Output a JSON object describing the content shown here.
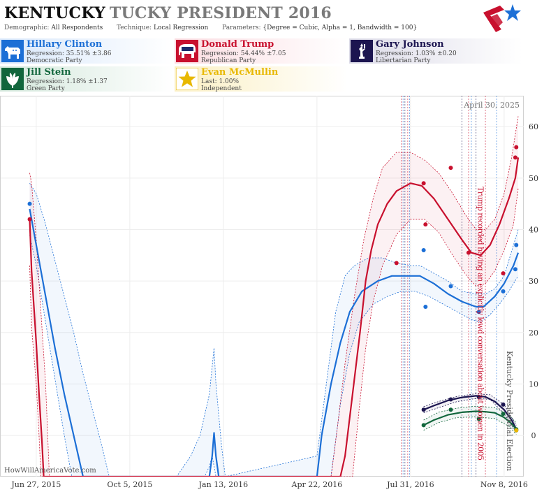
{
  "header": {
    "title_state": "KENTUCKY",
    "title_rest": "TUCKY PRESIDENT 2016",
    "demographic_label": "Demographic:",
    "demographic_value": "All Respondents",
    "technique_label": "Technique:",
    "technique_value": "Local Regression",
    "parameters_label": "Parameters:",
    "parameters_value": "{Degree = Cubic, Alpha = 1, Bandwidth = 100}"
  },
  "candidates": [
    {
      "name": "Hillary Clinton",
      "regression": "Regression: 35.51% ±3.86",
      "party": "Democratic Party",
      "color": "#1c6fd6",
      "icon": "donkey-icon"
    },
    {
      "name": "Donald Trump",
      "regression": "Regression: 54.44% ±7.05",
      "party": "Republican Party",
      "color": "#c8102e",
      "icon": "elephant-icon"
    },
    {
      "name": "Gary Johnson",
      "regression": "Regression: 1.03% ±0.20",
      "party": "Libertarian Party",
      "color": "#1c1550",
      "icon": "liberty-icon"
    },
    {
      "name": "Jill Stein",
      "regression": "Regression: 1.18% ±1.37",
      "party": "Green Party",
      "color": "#11663c",
      "icon": "leaf-icon"
    },
    {
      "name": "Evan McMullin",
      "regression": "Last: 1.00%",
      "party": "Independent",
      "color": "#e8b800",
      "icon": "star-icon"
    }
  ],
  "credit": "HowWillAmericaVote.com",
  "chart_data": {
    "type": "line",
    "x_ticks": [
      "Jun 27, 2015",
      "Oct 5, 2015",
      "Jan 13, 2016",
      "Apr 22, 2016",
      "Jul 31, 2016",
      "Nov 8, 2016"
    ],
    "y_ticks": [
      0,
      10,
      20,
      30,
      40,
      50,
      60
    ],
    "ylim": [
      -8,
      66
    ],
    "xlim_days": [
      -38,
      521
    ],
    "grid": true,
    "annotations": [
      {
        "text": "April 30, 2025",
        "position": "top-right"
      },
      {
        "text": "Trump recorded having an explicitly lewd conversation about women in 2005",
        "x_day": 469,
        "color": "#c8102e"
      },
      {
        "text": "Kentucky Presidential Election",
        "x_day": 500,
        "color": "#555555"
      }
    ],
    "event_lines_days": [
      390,
      392,
      394,
      397,
      399,
      455,
      462,
      465,
      470,
      480,
      492
    ],
    "series": [
      {
        "name": "Hillary Clinton",
        "color": "#1c6fd6",
        "points": [
          [
            -7,
            45
          ],
          [
            414,
            36
          ],
          [
            416,
            25
          ],
          [
            443,
            29
          ],
          [
            473,
            24
          ],
          [
            499,
            28
          ],
          [
            513,
            37
          ],
          [
            512,
            32.3
          ]
        ],
        "line": [
          [
            -7,
            44
          ],
          [
            0,
            37
          ],
          [
            10,
            27
          ],
          [
            20,
            17
          ],
          [
            30,
            8
          ],
          [
            40,
            0
          ],
          [
            50,
            -8
          ],
          [
            185,
            -8
          ],
          [
            188,
            -4
          ],
          [
            190,
            0.5
          ],
          [
            192,
            -4
          ],
          [
            195,
            -8
          ],
          [
            300,
            -8
          ],
          [
            305,
            0
          ],
          [
            315,
            10
          ],
          [
            325,
            18
          ],
          [
            335,
            24
          ],
          [
            348,
            28
          ],
          [
            365,
            30
          ],
          [
            380,
            31
          ],
          [
            395,
            31
          ],
          [
            410,
            31
          ],
          [
            425,
            29.5
          ],
          [
            440,
            27.5
          ],
          [
            455,
            26
          ],
          [
            470,
            25
          ],
          [
            478,
            25
          ],
          [
            490,
            27
          ],
          [
            500,
            29.5
          ],
          [
            510,
            33
          ],
          [
            515,
            35.5
          ]
        ],
        "band_upper": [
          [
            -7,
            49
          ],
          [
            0,
            47
          ],
          [
            10,
            41
          ],
          [
            20,
            34
          ],
          [
            30,
            27
          ],
          [
            40,
            20
          ],
          [
            50,
            12
          ],
          [
            60,
            5
          ],
          [
            70,
            -2
          ],
          [
            78,
            -8
          ],
          [
            150,
            -8
          ],
          [
            165,
            -4
          ],
          [
            175,
            0
          ],
          [
            185,
            8
          ],
          [
            190,
            17
          ],
          [
            192,
            10
          ],
          [
            198,
            -2
          ],
          [
            202,
            -8
          ],
          [
            300,
            -4
          ],
          [
            310,
            10
          ],
          [
            320,
            24
          ],
          [
            330,
            31
          ],
          [
            340,
            33
          ],
          [
            355,
            34.5
          ],
          [
            370,
            34.5
          ],
          [
            385,
            33.5
          ],
          [
            400,
            33
          ],
          [
            410,
            33
          ],
          [
            425,
            31.5
          ],
          [
            440,
            30
          ],
          [
            455,
            28
          ],
          [
            470,
            27.5
          ],
          [
            480,
            27.5
          ],
          [
            490,
            28.5
          ],
          [
            500,
            31
          ],
          [
            510,
            37
          ],
          [
            515,
            40
          ]
        ],
        "band_lower": [
          [
            -7,
            39
          ],
          [
            0,
            33
          ],
          [
            10,
            22
          ],
          [
            20,
            11
          ],
          [
            30,
            0
          ],
          [
            38,
            -8
          ],
          [
            180,
            -8
          ],
          [
            185,
            -6
          ],
          [
            188,
            -4
          ],
          [
            192,
            -8
          ],
          [
            315,
            -8
          ],
          [
            325,
            6
          ],
          [
            335,
            16
          ],
          [
            345,
            22
          ],
          [
            360,
            25.5
          ],
          [
            375,
            27
          ],
          [
            390,
            28
          ],
          [
            405,
            28
          ],
          [
            420,
            27
          ],
          [
            435,
            25.5
          ],
          [
            450,
            24
          ],
          [
            465,
            22.5
          ],
          [
            475,
            22
          ],
          [
            485,
            23.5
          ],
          [
            495,
            25.5
          ],
          [
            505,
            28
          ],
          [
            515,
            31
          ]
        ]
      },
      {
        "name": "Donald Trump",
        "color": "#c8102e",
        "points": [
          [
            -7,
            42
          ],
          [
            385,
            33.5
          ],
          [
            414,
            49
          ],
          [
            416,
            41
          ],
          [
            443,
            52
          ],
          [
            462,
            35.5
          ],
          [
            499,
            31.5
          ],
          [
            513,
            56
          ],
          [
            512,
            54
          ]
        ],
        "line": [
          [
            -7,
            42
          ],
          [
            -5,
            32
          ],
          [
            0,
            18
          ],
          [
            3,
            8
          ],
          [
            6,
            -1
          ],
          [
            8,
            -8
          ],
          [
            325,
            -8
          ],
          [
            330,
            -4
          ],
          [
            338,
            8
          ],
          [
            346,
            20
          ],
          [
            352,
            30
          ],
          [
            358,
            36
          ],
          [
            365,
            41
          ],
          [
            375,
            45
          ],
          [
            385,
            47.5
          ],
          [
            400,
            49
          ],
          [
            412,
            48.5
          ],
          [
            425,
            46
          ],
          [
            440,
            42
          ],
          [
            455,
            38
          ],
          [
            465,
            35.5
          ],
          [
            475,
            35
          ],
          [
            485,
            37
          ],
          [
            495,
            41
          ],
          [
            505,
            46
          ],
          [
            512,
            50
          ],
          [
            515,
            54
          ]
        ],
        "band_upper": [
          [
            -7,
            51
          ],
          [
            -5,
            49
          ],
          [
            0,
            38
          ],
          [
            5,
            24
          ],
          [
            10,
            10
          ],
          [
            14,
            -8
          ],
          [
            315,
            -8
          ],
          [
            322,
            2
          ],
          [
            330,
            14
          ],
          [
            340,
            27
          ],
          [
            350,
            38
          ],
          [
            360,
            46
          ],
          [
            370,
            52
          ],
          [
            385,
            55
          ],
          [
            400,
            55
          ],
          [
            415,
            53.5
          ],
          [
            430,
            51
          ],
          [
            445,
            47
          ],
          [
            460,
            42.5
          ],
          [
            470,
            40
          ],
          [
            480,
            40
          ],
          [
            490,
            42
          ],
          [
            500,
            47
          ],
          [
            508,
            54
          ],
          [
            515,
            62
          ]
        ],
        "band_lower": [
          [
            -7,
            33
          ],
          [
            -5,
            21
          ],
          [
            0,
            10
          ],
          [
            3,
            0
          ],
          [
            5,
            -8
          ],
          [
            338,
            -8
          ],
          [
            345,
            5
          ],
          [
            352,
            17
          ],
          [
            360,
            26
          ],
          [
            370,
            33
          ],
          [
            385,
            39
          ],
          [
            400,
            42
          ],
          [
            415,
            42
          ],
          [
            430,
            39.5
          ],
          [
            445,
            35
          ],
          [
            460,
            31
          ],
          [
            470,
            29
          ],
          [
            480,
            29.5
          ],
          [
            490,
            32
          ],
          [
            500,
            36
          ],
          [
            510,
            41
          ],
          [
            515,
            48
          ]
        ]
      },
      {
        "name": "Gary Johnson",
        "color": "#1c1550",
        "points": [
          [
            414,
            5
          ],
          [
            443,
            7
          ],
          [
            473,
            7.5
          ],
          [
            499,
            6
          ],
          [
            513,
            1
          ]
        ],
        "line": [
          [
            414,
            5
          ],
          [
            425,
            5.8
          ],
          [
            440,
            6.8
          ],
          [
            455,
            7.4
          ],
          [
            470,
            7.7
          ],
          [
            480,
            7.5
          ],
          [
            490,
            6.6
          ],
          [
            500,
            5
          ],
          [
            508,
            3
          ],
          [
            513,
            1.2
          ]
        ],
        "band_upper": [
          [
            414,
            5.6
          ],
          [
            430,
            6.6
          ],
          [
            450,
            7.6
          ],
          [
            470,
            8.1
          ],
          [
            485,
            7.9
          ],
          [
            500,
            6
          ],
          [
            513,
            2
          ]
        ],
        "band_lower": [
          [
            414,
            4.4
          ],
          [
            430,
            5.4
          ],
          [
            450,
            6.6
          ],
          [
            470,
            7.2
          ],
          [
            485,
            7.0
          ],
          [
            500,
            4.2
          ],
          [
            513,
            0.6
          ]
        ]
      },
      {
        "name": "Jill Stein",
        "color": "#11663c",
        "points": [
          [
            414,
            2
          ],
          [
            443,
            5
          ],
          [
            473,
            3.2
          ],
          [
            499,
            4.2
          ],
          [
            513,
            1.2
          ]
        ],
        "line": [
          [
            414,
            2
          ],
          [
            425,
            3
          ],
          [
            440,
            4
          ],
          [
            455,
            4.5
          ],
          [
            470,
            4.7
          ],
          [
            480,
            4.6
          ],
          [
            490,
            4.4
          ],
          [
            500,
            3.5
          ],
          [
            508,
            2.3
          ],
          [
            513,
            1.2
          ]
        ],
        "band_upper": [
          [
            414,
            3
          ],
          [
            430,
            4.5
          ],
          [
            450,
            5.3
          ],
          [
            470,
            5.7
          ],
          [
            490,
            5.4
          ],
          [
            505,
            4
          ],
          [
            513,
            2.5
          ]
        ],
        "band_lower": [
          [
            414,
            1
          ],
          [
            430,
            2.5
          ],
          [
            450,
            3.5
          ],
          [
            470,
            3.6
          ],
          [
            490,
            3.3
          ],
          [
            505,
            1.8
          ],
          [
            513,
            0.2
          ]
        ]
      },
      {
        "name": "Evan McMullin",
        "color": "#e8b800",
        "points": [
          [
            513,
            1
          ]
        ]
      }
    ]
  }
}
